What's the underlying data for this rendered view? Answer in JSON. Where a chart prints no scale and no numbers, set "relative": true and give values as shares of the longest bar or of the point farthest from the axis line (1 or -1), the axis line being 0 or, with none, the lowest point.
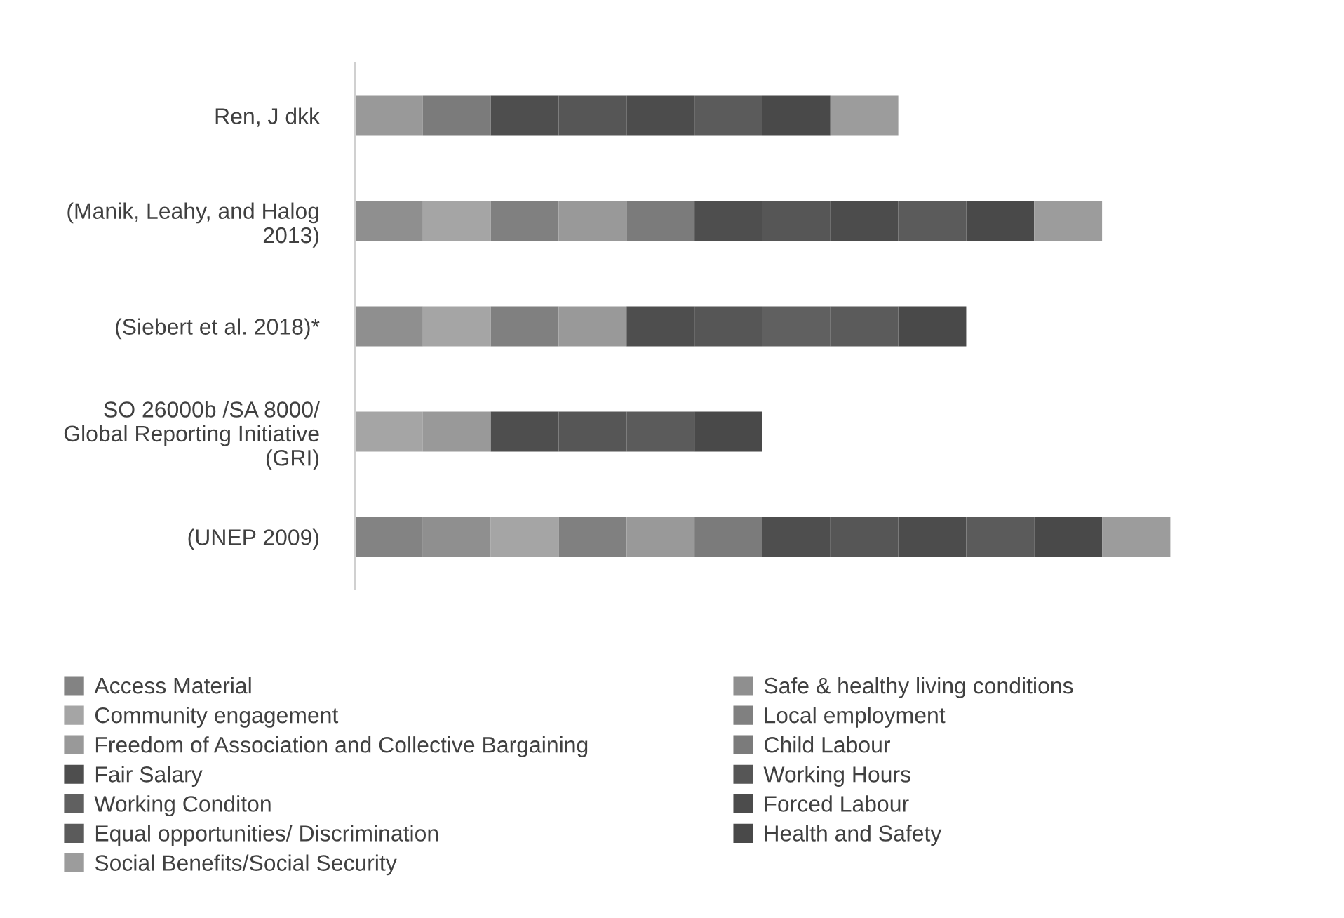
{
  "chart_data": {
    "type": "bar",
    "orientation": "horizontal",
    "stacked": true,
    "relative": true,
    "legend": "bottom",
    "grid": false,
    "categories": [
      "Ren, J dkk",
      "(Manik, Leahy, and Halog\n2013)",
      "(Siebert et al. 2018)*",
      "SO 26000b /SA 8000/\nGlobal Reporting Initiative\n(GRI)",
      "(UNEP 2009)"
    ],
    "series": [
      {
        "name": "Access Material",
        "color": "#838383",
        "values": [
          null,
          null,
          null,
          null,
          0.0833
        ]
      },
      {
        "name": "Safe & healthy living conditions",
        "color": "#8f8f8f",
        "values": [
          null,
          0.0833,
          0.0833,
          null,
          0.0833
        ]
      },
      {
        "name": "Community engagement",
        "color": "#a5a5a5",
        "values": [
          null,
          0.0833,
          0.0833,
          0.0833,
          0.0833
        ]
      },
      {
        "name": "Local employment",
        "color": "#808080",
        "values": [
          null,
          0.0833,
          0.0833,
          null,
          0.0833
        ]
      },
      {
        "name": "Freedom of Association and Collective Bargaining",
        "color": "#999999",
        "values": [
          0.0833,
          0.0833,
          0.0833,
          0.0833,
          0.0833
        ]
      },
      {
        "name": "Child Labour",
        "color": "#7b7b7b",
        "values": [
          0.0833,
          0.0833,
          null,
          null,
          0.0833
        ]
      },
      {
        "name": "Fair Salary",
        "color": "#4e4e4e",
        "values": [
          0.0833,
          0.0833,
          0.0833,
          0.0833,
          0.0833
        ]
      },
      {
        "name": "Working Hours",
        "color": "#565656",
        "values": [
          0.0833,
          0.0833,
          0.0833,
          0.0833,
          0.0833
        ]
      },
      {
        "name": "Working Conditon",
        "color": "#606060",
        "values": [
          null,
          null,
          0.0833,
          null,
          null
        ]
      },
      {
        "name": "Forced Labour",
        "color": "#4c4c4c",
        "values": [
          0.0833,
          0.0833,
          null,
          null,
          0.0833
        ]
      },
      {
        "name": "Equal opportunities/ Discrimination",
        "color": "#5b5b5b",
        "values": [
          0.0833,
          0.0833,
          0.0833,
          0.0833,
          0.0833
        ]
      },
      {
        "name": "Health and Safety",
        "color": "#494949",
        "values": [
          0.0833,
          0.0833,
          0.0833,
          0.0833,
          0.0833
        ]
      },
      {
        "name": "Social Benefits/Social Security",
        "color": "#9c9c9c",
        "values": [
          0.0833,
          0.0833,
          null,
          null,
          0.0837
        ]
      }
    ]
  }
}
